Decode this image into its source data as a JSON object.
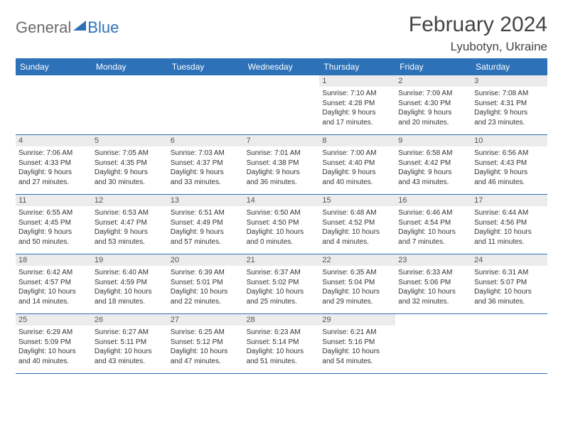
{
  "logo": {
    "general": "General",
    "blue": "Blue"
  },
  "title": "February 2024",
  "location": "Lyubotyn, Ukraine",
  "colors": {
    "header_bg": "#2d71b8",
    "header_text": "#ffffff",
    "daynum_bg": "#ececec",
    "border": "#2d71b8",
    "text": "#333333"
  },
  "dayNames": [
    "Sunday",
    "Monday",
    "Tuesday",
    "Wednesday",
    "Thursday",
    "Friday",
    "Saturday"
  ],
  "layout": {
    "firstDayOffset": 4,
    "rows": 5,
    "cols": 7
  },
  "days": [
    {
      "n": "1",
      "sunrise": "Sunrise: 7:10 AM",
      "sunset": "Sunset: 4:28 PM",
      "dl1": "Daylight: 9 hours",
      "dl2": "and 17 minutes."
    },
    {
      "n": "2",
      "sunrise": "Sunrise: 7:09 AM",
      "sunset": "Sunset: 4:30 PM",
      "dl1": "Daylight: 9 hours",
      "dl2": "and 20 minutes."
    },
    {
      "n": "3",
      "sunrise": "Sunrise: 7:08 AM",
      "sunset": "Sunset: 4:31 PM",
      "dl1": "Daylight: 9 hours",
      "dl2": "and 23 minutes."
    },
    {
      "n": "4",
      "sunrise": "Sunrise: 7:06 AM",
      "sunset": "Sunset: 4:33 PM",
      "dl1": "Daylight: 9 hours",
      "dl2": "and 27 minutes."
    },
    {
      "n": "5",
      "sunrise": "Sunrise: 7:05 AM",
      "sunset": "Sunset: 4:35 PM",
      "dl1": "Daylight: 9 hours",
      "dl2": "and 30 minutes."
    },
    {
      "n": "6",
      "sunrise": "Sunrise: 7:03 AM",
      "sunset": "Sunset: 4:37 PM",
      "dl1": "Daylight: 9 hours",
      "dl2": "and 33 minutes."
    },
    {
      "n": "7",
      "sunrise": "Sunrise: 7:01 AM",
      "sunset": "Sunset: 4:38 PM",
      "dl1": "Daylight: 9 hours",
      "dl2": "and 36 minutes."
    },
    {
      "n": "8",
      "sunrise": "Sunrise: 7:00 AM",
      "sunset": "Sunset: 4:40 PM",
      "dl1": "Daylight: 9 hours",
      "dl2": "and 40 minutes."
    },
    {
      "n": "9",
      "sunrise": "Sunrise: 6:58 AM",
      "sunset": "Sunset: 4:42 PM",
      "dl1": "Daylight: 9 hours",
      "dl2": "and 43 minutes."
    },
    {
      "n": "10",
      "sunrise": "Sunrise: 6:56 AM",
      "sunset": "Sunset: 4:43 PM",
      "dl1": "Daylight: 9 hours",
      "dl2": "and 46 minutes."
    },
    {
      "n": "11",
      "sunrise": "Sunrise: 6:55 AM",
      "sunset": "Sunset: 4:45 PM",
      "dl1": "Daylight: 9 hours",
      "dl2": "and 50 minutes."
    },
    {
      "n": "12",
      "sunrise": "Sunrise: 6:53 AM",
      "sunset": "Sunset: 4:47 PM",
      "dl1": "Daylight: 9 hours",
      "dl2": "and 53 minutes."
    },
    {
      "n": "13",
      "sunrise": "Sunrise: 6:51 AM",
      "sunset": "Sunset: 4:49 PM",
      "dl1": "Daylight: 9 hours",
      "dl2": "and 57 minutes."
    },
    {
      "n": "14",
      "sunrise": "Sunrise: 6:50 AM",
      "sunset": "Sunset: 4:50 PM",
      "dl1": "Daylight: 10 hours",
      "dl2": "and 0 minutes."
    },
    {
      "n": "15",
      "sunrise": "Sunrise: 6:48 AM",
      "sunset": "Sunset: 4:52 PM",
      "dl1": "Daylight: 10 hours",
      "dl2": "and 4 minutes."
    },
    {
      "n": "16",
      "sunrise": "Sunrise: 6:46 AM",
      "sunset": "Sunset: 4:54 PM",
      "dl1": "Daylight: 10 hours",
      "dl2": "and 7 minutes."
    },
    {
      "n": "17",
      "sunrise": "Sunrise: 6:44 AM",
      "sunset": "Sunset: 4:56 PM",
      "dl1": "Daylight: 10 hours",
      "dl2": "and 11 minutes."
    },
    {
      "n": "18",
      "sunrise": "Sunrise: 6:42 AM",
      "sunset": "Sunset: 4:57 PM",
      "dl1": "Daylight: 10 hours",
      "dl2": "and 14 minutes."
    },
    {
      "n": "19",
      "sunrise": "Sunrise: 6:40 AM",
      "sunset": "Sunset: 4:59 PM",
      "dl1": "Daylight: 10 hours",
      "dl2": "and 18 minutes."
    },
    {
      "n": "20",
      "sunrise": "Sunrise: 6:39 AM",
      "sunset": "Sunset: 5:01 PM",
      "dl1": "Daylight: 10 hours",
      "dl2": "and 22 minutes."
    },
    {
      "n": "21",
      "sunrise": "Sunrise: 6:37 AM",
      "sunset": "Sunset: 5:02 PM",
      "dl1": "Daylight: 10 hours",
      "dl2": "and 25 minutes."
    },
    {
      "n": "22",
      "sunrise": "Sunrise: 6:35 AM",
      "sunset": "Sunset: 5:04 PM",
      "dl1": "Daylight: 10 hours",
      "dl2": "and 29 minutes."
    },
    {
      "n": "23",
      "sunrise": "Sunrise: 6:33 AM",
      "sunset": "Sunset: 5:06 PM",
      "dl1": "Daylight: 10 hours",
      "dl2": "and 32 minutes."
    },
    {
      "n": "24",
      "sunrise": "Sunrise: 6:31 AM",
      "sunset": "Sunset: 5:07 PM",
      "dl1": "Daylight: 10 hours",
      "dl2": "and 36 minutes."
    },
    {
      "n": "25",
      "sunrise": "Sunrise: 6:29 AM",
      "sunset": "Sunset: 5:09 PM",
      "dl1": "Daylight: 10 hours",
      "dl2": "and 40 minutes."
    },
    {
      "n": "26",
      "sunrise": "Sunrise: 6:27 AM",
      "sunset": "Sunset: 5:11 PM",
      "dl1": "Daylight: 10 hours",
      "dl2": "and 43 minutes."
    },
    {
      "n": "27",
      "sunrise": "Sunrise: 6:25 AM",
      "sunset": "Sunset: 5:12 PM",
      "dl1": "Daylight: 10 hours",
      "dl2": "and 47 minutes."
    },
    {
      "n": "28",
      "sunrise": "Sunrise: 6:23 AM",
      "sunset": "Sunset: 5:14 PM",
      "dl1": "Daylight: 10 hours",
      "dl2": "and 51 minutes."
    },
    {
      "n": "29",
      "sunrise": "Sunrise: 6:21 AM",
      "sunset": "Sunset: 5:16 PM",
      "dl1": "Daylight: 10 hours",
      "dl2": "and 54 minutes."
    }
  ]
}
